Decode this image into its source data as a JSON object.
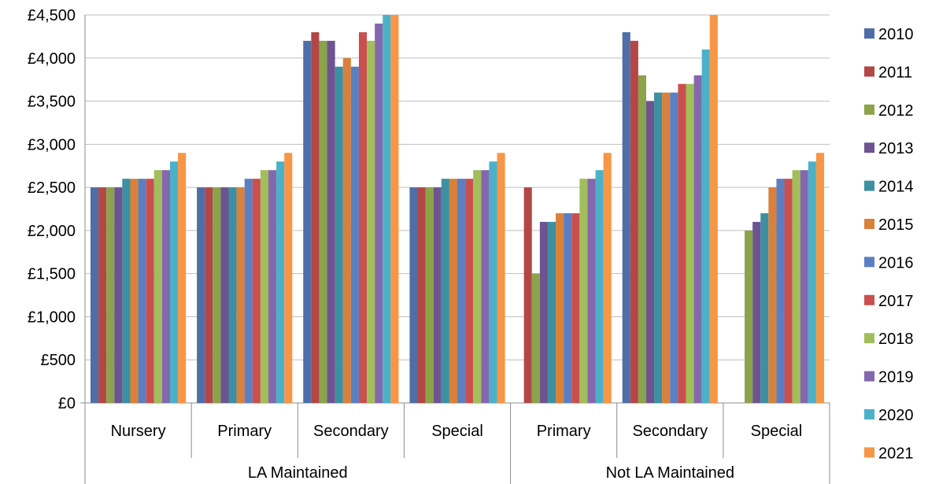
{
  "chart_data": {
    "type": "bar",
    "title": "",
    "xlabel": "",
    "ylabel": "",
    "ylim": [
      0,
      4500
    ],
    "yticks": [
      "£0",
      "£500",
      "£1,000",
      "£1,500",
      "£2,000",
      "£2,500",
      "£3,000",
      "£3,500",
      "£4,000",
      "£4,500"
    ],
    "yticks_values": [
      0,
      500,
      1000,
      1500,
      2000,
      2500,
      3000,
      3500,
      4000,
      4500
    ],
    "grid": true,
    "legend_position": "right",
    "groups": [
      {
        "label": "LA Maintained",
        "categories": [
          "Nursery",
          "Primary",
          "Secondary",
          "Special"
        ]
      },
      {
        "label": "Not LA Maintained",
        "categories": [
          "Primary",
          "Secondary",
          "Special"
        ]
      }
    ],
    "categories": [
      "Nursery",
      "Primary",
      "Secondary",
      "Special",
      "Primary",
      "Secondary",
      "Special"
    ],
    "series": [
      {
        "name": "2010",
        "color": "#4F6EA8",
        "values": [
          2500,
          2500,
          4200,
          2500,
          null,
          4300,
          null
        ]
      },
      {
        "name": "2011",
        "color": "#B24746",
        "values": [
          2500,
          2500,
          4300,
          2500,
          2500,
          4200,
          null
        ]
      },
      {
        "name": "2012",
        "color": "#8BA34A",
        "values": [
          2500,
          2500,
          4200,
          2500,
          1500,
          3800,
          2000
        ]
      },
      {
        "name": "2013",
        "color": "#6D5491",
        "values": [
          2500,
          2500,
          4200,
          2500,
          2100,
          3500,
          2100
        ]
      },
      {
        "name": "2014",
        "color": "#3D8FA2",
        "values": [
          2600,
          2500,
          3900,
          2600,
          2100,
          3600,
          2200
        ]
      },
      {
        "name": "2015",
        "color": "#D9813A",
        "values": [
          2600,
          2500,
          4000,
          2600,
          2200,
          3600,
          2500
        ]
      },
      {
        "name": "2016",
        "color": "#5B7FC2",
        "values": [
          2600,
          2600,
          3900,
          2600,
          2200,
          3600,
          2600
        ]
      },
      {
        "name": "2017",
        "color": "#C9504F",
        "values": [
          2600,
          2600,
          4300,
          2600,
          2200,
          3700,
          2600
        ]
      },
      {
        "name": "2018",
        "color": "#A2BE5A",
        "values": [
          2700,
          2700,
          4200,
          2700,
          2600,
          3700,
          2700
        ]
      },
      {
        "name": "2019",
        "color": "#8468AE",
        "values": [
          2700,
          2700,
          4400,
          2700,
          2600,
          3800,
          2700
        ]
      },
      {
        "name": "2020",
        "color": "#4BB1C9",
        "values": [
          2800,
          2800,
          4500,
          2800,
          2700,
          4100,
          2800
        ]
      },
      {
        "name": "2021",
        "color": "#F79646",
        "values": [
          2900,
          2900,
          4500,
          2900,
          2900,
          4500,
          2900
        ]
      }
    ]
  }
}
